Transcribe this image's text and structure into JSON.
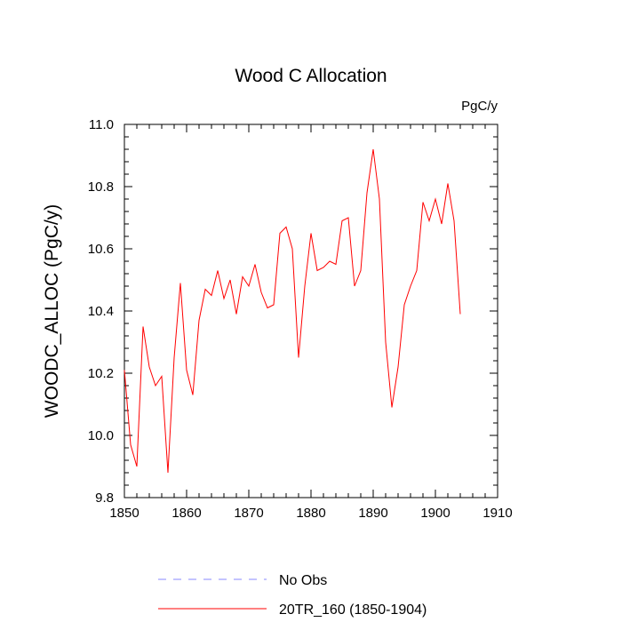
{
  "chart_data": {
    "type": "line",
    "title": "Wood C Allocation",
    "units_label": "PgC/y",
    "xlabel": "",
    "ylabel": "WOODC_ALLOC  (PgC/y)",
    "xlim": [
      1850,
      1910
    ],
    "ylim": [
      9.8,
      11.0
    ],
    "x_ticks": [
      1850,
      1860,
      1870,
      1880,
      1890,
      1900,
      1910
    ],
    "x_tick_labels": [
      "1850",
      "1860",
      "1870",
      "1880",
      "1890",
      "1900",
      "1910"
    ],
    "y_ticks": [
      9.8,
      10.0,
      10.2,
      10.4,
      10.6,
      10.8,
      11.0
    ],
    "y_tick_labels": [
      "9.8",
      "10.0",
      "10.2",
      "10.4",
      "10.6",
      "10.8",
      "11.0"
    ],
    "grid": false,
    "legend_position": "bottom",
    "series": [
      {
        "name": "No Obs",
        "color": "#8888ff",
        "style": "dashed",
        "x": [],
        "values": []
      },
      {
        "name": "20TR_160 (1850-1904)",
        "color": "#ff0000",
        "style": "solid",
        "x": [
          1850,
          1851,
          1852,
          1853,
          1854,
          1855,
          1856,
          1857,
          1858,
          1859,
          1860,
          1861,
          1862,
          1863,
          1864,
          1865,
          1866,
          1867,
          1868,
          1869,
          1870,
          1871,
          1872,
          1873,
          1874,
          1875,
          1876,
          1877,
          1878,
          1879,
          1880,
          1881,
          1882,
          1883,
          1884,
          1885,
          1886,
          1887,
          1888,
          1889,
          1890,
          1891,
          1892,
          1893,
          1894,
          1895,
          1896,
          1897,
          1898,
          1899,
          1900,
          1901,
          1902,
          1903,
          1904
        ],
        "values": [
          10.21,
          9.97,
          9.9,
          10.35,
          10.22,
          10.16,
          10.19,
          9.88,
          10.25,
          10.49,
          10.21,
          10.13,
          10.37,
          10.47,
          10.45,
          10.53,
          10.44,
          10.5,
          10.39,
          10.51,
          10.48,
          10.55,
          10.46,
          10.41,
          10.42,
          10.65,
          10.67,
          10.6,
          10.25,
          10.48,
          10.65,
          10.53,
          10.54,
          10.56,
          10.55,
          10.69,
          10.7,
          10.48,
          10.53,
          10.78,
          10.92,
          10.76,
          10.3,
          10.09,
          10.22,
          10.42,
          10.48,
          10.53,
          10.75,
          10.69,
          10.76,
          10.68,
          10.81,
          10.69,
          10.39
        ]
      }
    ]
  }
}
